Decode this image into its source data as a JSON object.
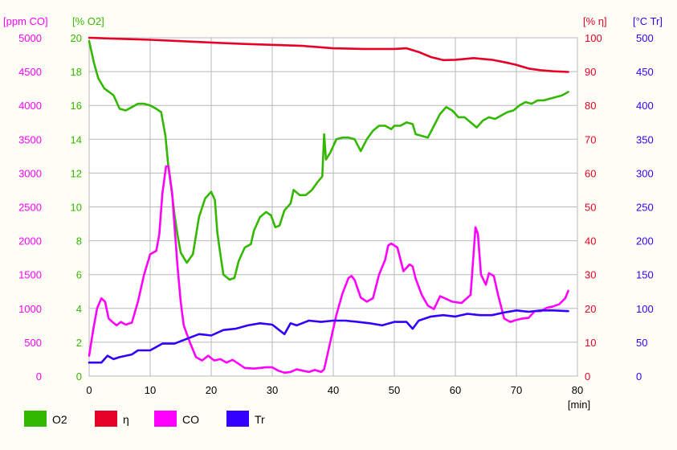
{
  "chart_data": {
    "type": "line",
    "x_unit": "[min]",
    "xlim": [
      0,
      80
    ],
    "x_ticks": [
      0,
      10,
      20,
      30,
      40,
      50,
      60,
      70,
      80
    ],
    "grid": true,
    "legend_position": "bottom-left",
    "axes": {
      "co": {
        "unit": "[ppm CO]",
        "color": "#ff00ff",
        "side": "left-outer",
        "ylim": [
          0,
          5000
        ],
        "ticks": [
          0,
          500,
          1000,
          1500,
          2000,
          2500,
          3000,
          3500,
          4000,
          4500,
          5000
        ]
      },
      "o2": {
        "unit": "[% O2]",
        "color": "#33b800",
        "side": "left-inner",
        "ylim": [
          0,
          20
        ],
        "ticks": [
          0,
          2,
          4,
          6,
          8,
          10,
          12,
          14,
          16,
          18,
          20
        ]
      },
      "eta": {
        "unit": "[% η]",
        "color": "#e60026",
        "side": "right-inner",
        "ylim": [
          0,
          100
        ],
        "ticks": [
          0,
          10,
          20,
          30,
          40,
          50,
          60,
          70,
          80,
          90,
          100
        ]
      },
      "tr": {
        "unit": "[°C Tr]",
        "color": "#3300ff",
        "side": "right-outer",
        "ylim": [
          0,
          500
        ],
        "ticks": [
          0,
          50,
          100,
          150,
          200,
          250,
          300,
          350,
          400,
          450,
          500
        ]
      }
    },
    "series": [
      {
        "name": "O2",
        "axis": "o2",
        "color": "#33b800",
        "points": [
          [
            0,
            19.8
          ],
          [
            0.8,
            18.5
          ],
          [
            1.5,
            17.6
          ],
          [
            2.5,
            17.0
          ],
          [
            4,
            16.6
          ],
          [
            5,
            15.8
          ],
          [
            6,
            15.7
          ],
          [
            7,
            15.9
          ],
          [
            8,
            16.1
          ],
          [
            9,
            16.1
          ],
          [
            10,
            16.0
          ],
          [
            11,
            15.8
          ],
          [
            11.8,
            15.6
          ],
          [
            12.5,
            14.2
          ],
          [
            13,
            12.3
          ],
          [
            13.5,
            11.0
          ],
          [
            14,
            9.5
          ],
          [
            14.5,
            8.3
          ],
          [
            15,
            7.3
          ],
          [
            16,
            6.7
          ],
          [
            17,
            7.2
          ],
          [
            18,
            9.4
          ],
          [
            19,
            10.5
          ],
          [
            20,
            10.9
          ],
          [
            20.6,
            10.4
          ],
          [
            21,
            8.5
          ],
          [
            21.5,
            7.2
          ],
          [
            22,
            6.0
          ],
          [
            23,
            5.7
          ],
          [
            23.8,
            5.8
          ],
          [
            24.5,
            6.8
          ],
          [
            25.5,
            7.6
          ],
          [
            26.5,
            7.8
          ],
          [
            27,
            8.6
          ],
          [
            28,
            9.4
          ],
          [
            29,
            9.7
          ],
          [
            29.8,
            9.5
          ],
          [
            30.5,
            8.8
          ],
          [
            31.2,
            8.9
          ],
          [
            32,
            9.8
          ],
          [
            33,
            10.2
          ],
          [
            33.5,
            11.0
          ],
          [
            34.5,
            10.7
          ],
          [
            35.5,
            10.7
          ],
          [
            36.5,
            11.0
          ],
          [
            37.5,
            11.5
          ],
          [
            38.2,
            11.8
          ],
          [
            38.5,
            14.3
          ],
          [
            38.8,
            12.8
          ],
          [
            39.5,
            13.2
          ],
          [
            40.5,
            14.0
          ],
          [
            41.5,
            14.1
          ],
          [
            42.5,
            14.1
          ],
          [
            43.5,
            14.0
          ],
          [
            44.5,
            13.3
          ],
          [
            45.5,
            14.0
          ],
          [
            46.5,
            14.5
          ],
          [
            47.5,
            14.8
          ],
          [
            48.5,
            14.8
          ],
          [
            49.5,
            14.6
          ],
          [
            50,
            14.8
          ],
          [
            51,
            14.8
          ],
          [
            52,
            15.0
          ],
          [
            53,
            14.9
          ],
          [
            53.5,
            14.3
          ],
          [
            54.5,
            14.2
          ],
          [
            55.5,
            14.1
          ],
          [
            56.5,
            14.8
          ],
          [
            57.5,
            15.5
          ],
          [
            58.5,
            15.9
          ],
          [
            59.5,
            15.7
          ],
          [
            60.5,
            15.3
          ],
          [
            61.5,
            15.3
          ],
          [
            62.5,
            15.0
          ],
          [
            63.5,
            14.7
          ],
          [
            64.5,
            15.1
          ],
          [
            65.5,
            15.3
          ],
          [
            66.5,
            15.2
          ],
          [
            67.5,
            15.4
          ],
          [
            68.5,
            15.6
          ],
          [
            69.5,
            15.7
          ],
          [
            70.5,
            16.0
          ],
          [
            71.5,
            16.2
          ],
          [
            72.5,
            16.1
          ],
          [
            73.5,
            16.3
          ],
          [
            74.5,
            16.3
          ],
          [
            75.5,
            16.4
          ],
          [
            76.5,
            16.5
          ],
          [
            77.5,
            16.6
          ],
          [
            78.5,
            16.8
          ]
        ]
      },
      {
        "name": "η",
        "axis": "eta",
        "color": "#e60026",
        "points": [
          [
            0,
            100
          ],
          [
            5,
            99.7
          ],
          [
            10,
            99.4
          ],
          [
            15,
            99.0
          ],
          [
            20,
            98.6
          ],
          [
            25,
            98.2
          ],
          [
            30,
            97.9
          ],
          [
            35,
            97.6
          ],
          [
            40,
            96.9
          ],
          [
            45,
            96.7
          ],
          [
            50,
            96.7
          ],
          [
            52,
            96.9
          ],
          [
            54,
            95.8
          ],
          [
            56,
            94.3
          ],
          [
            58,
            93.4
          ],
          [
            60,
            93.5
          ],
          [
            63,
            94.0
          ],
          [
            66,
            93.5
          ],
          [
            68,
            92.8
          ],
          [
            70,
            92.0
          ],
          [
            72,
            90.9
          ],
          [
            74,
            90.4
          ],
          [
            76,
            90.1
          ],
          [
            78.5,
            89.9
          ]
        ]
      },
      {
        "name": "CO",
        "axis": "co",
        "color": "#ff00ff",
        "points": [
          [
            0,
            300
          ],
          [
            0.7,
            700
          ],
          [
            1.3,
            1000
          ],
          [
            2,
            1150
          ],
          [
            2.6,
            1100
          ],
          [
            3.2,
            850
          ],
          [
            3.8,
            800
          ],
          [
            4.5,
            750
          ],
          [
            5.2,
            800
          ],
          [
            6,
            760
          ],
          [
            7,
            790
          ],
          [
            8,
            1100
          ],
          [
            9,
            1500
          ],
          [
            10,
            1800
          ],
          [
            11,
            1850
          ],
          [
            11.5,
            2100
          ],
          [
            12,
            2700
          ],
          [
            12.6,
            3100
          ],
          [
            13,
            3100
          ],
          [
            13.6,
            2700
          ],
          [
            14,
            2200
          ],
          [
            14.5,
            1600
          ],
          [
            15,
            1100
          ],
          [
            15.5,
            750
          ],
          [
            16.5,
            500
          ],
          [
            17.5,
            280
          ],
          [
            18.5,
            230
          ],
          [
            19.5,
            300
          ],
          [
            20.5,
            230
          ],
          [
            21.5,
            250
          ],
          [
            22.5,
            200
          ],
          [
            23.5,
            240
          ],
          [
            24.5,
            180
          ],
          [
            25.5,
            120
          ],
          [
            27,
            110
          ],
          [
            29,
            130
          ],
          [
            30,
            130
          ],
          [
            31,
            80
          ],
          [
            32,
            50
          ],
          [
            33,
            60
          ],
          [
            34,
            100
          ],
          [
            35,
            80
          ],
          [
            36,
            60
          ],
          [
            37,
            90
          ],
          [
            38,
            60
          ],
          [
            38.5,
            100
          ],
          [
            39.5,
            500
          ],
          [
            40.5,
            900
          ],
          [
            41.5,
            1220
          ],
          [
            42.5,
            1450
          ],
          [
            43,
            1480
          ],
          [
            43.5,
            1420
          ],
          [
            44.5,
            1160
          ],
          [
            45.5,
            1100
          ],
          [
            46.5,
            1150
          ],
          [
            47.5,
            1500
          ],
          [
            48.5,
            1720
          ],
          [
            49,
            1930
          ],
          [
            49.5,
            1960
          ],
          [
            50.5,
            1900
          ],
          [
            51.5,
            1550
          ],
          [
            52.5,
            1650
          ],
          [
            53,
            1620
          ],
          [
            53.5,
            1440
          ],
          [
            54.5,
            1200
          ],
          [
            55.5,
            1040
          ],
          [
            56.5,
            990
          ],
          [
            57.5,
            1180
          ],
          [
            58.5,
            1140
          ],
          [
            59.5,
            1100
          ],
          [
            61,
            1080
          ],
          [
            62.5,
            1200
          ],
          [
            63.3,
            2200
          ],
          [
            63.7,
            2100
          ],
          [
            64.2,
            1500
          ],
          [
            65,
            1350
          ],
          [
            65.5,
            1520
          ],
          [
            66.3,
            1480
          ],
          [
            67,
            1200
          ],
          [
            68,
            850
          ],
          [
            69,
            800
          ],
          [
            70,
            830
          ],
          [
            71,
            850
          ],
          [
            72,
            860
          ],
          [
            73,
            960
          ],
          [
            74,
            960
          ],
          [
            75,
            1010
          ],
          [
            76,
            1030
          ],
          [
            77,
            1060
          ],
          [
            78,
            1150
          ],
          [
            78.5,
            1260
          ]
        ]
      },
      {
        "name": "Tr",
        "axis": "tr",
        "color": "#3300ff",
        "points": [
          [
            0,
            20
          ],
          [
            2,
            20
          ],
          [
            3,
            30
          ],
          [
            4,
            25
          ],
          [
            5,
            28
          ],
          [
            7,
            32
          ],
          [
            8,
            38
          ],
          [
            10,
            38
          ],
          [
            12,
            48
          ],
          [
            14,
            48
          ],
          [
            16,
            55
          ],
          [
            18,
            62
          ],
          [
            20,
            60
          ],
          [
            22,
            68
          ],
          [
            24,
            70
          ],
          [
            26,
            75
          ],
          [
            28,
            78
          ],
          [
            30,
            76
          ],
          [
            32,
            62
          ],
          [
            33,
            78
          ],
          [
            34,
            75
          ],
          [
            36,
            82
          ],
          [
            38,
            80
          ],
          [
            40,
            82
          ],
          [
            42,
            82
          ],
          [
            44,
            80
          ],
          [
            46,
            78
          ],
          [
            48,
            75
          ],
          [
            50,
            80
          ],
          [
            52,
            80
          ],
          [
            53,
            70
          ],
          [
            54,
            82
          ],
          [
            56,
            88
          ],
          [
            58,
            90
          ],
          [
            60,
            88
          ],
          [
            62,
            92
          ],
          [
            64,
            90
          ],
          [
            66,
            90
          ],
          [
            68,
            94
          ],
          [
            70,
            97
          ],
          [
            72,
            95
          ],
          [
            74,
            97
          ],
          [
            76,
            97
          ],
          [
            78.5,
            96
          ]
        ]
      }
    ]
  }
}
